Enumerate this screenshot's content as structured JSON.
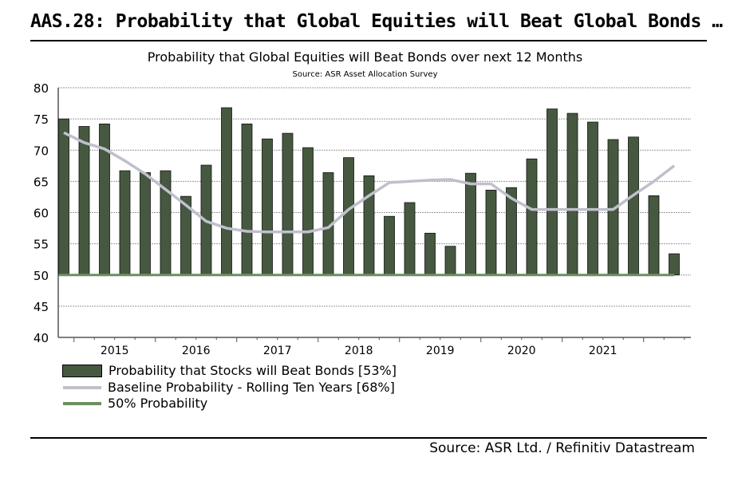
{
  "header": {
    "title": "AAS.28: Probability that Global Equities will Beat Global Bonds …"
  },
  "footer": {
    "source": "Source: ASR Ltd. / Refinitiv Datastream"
  },
  "chart_data": {
    "type": "bar",
    "title": "Probability that Global Equities will Beat Bonds over next 12 Months",
    "subtitle": "Source: ASR Asset Allocation Survey",
    "ylim": [
      40,
      80
    ],
    "yticks": [
      40,
      45,
      50,
      55,
      60,
      65,
      70,
      75,
      80
    ],
    "xtick_labels": [
      "2015",
      "2016",
      "2017",
      "2018",
      "2019",
      "2020",
      "2021"
    ],
    "grid": true,
    "legend_position": "bottom",
    "colors": {
      "bars": "#465940",
      "baseline": "#c0c0cc",
      "fifty": "#6b8f5e"
    },
    "series": [
      {
        "name": "Probability that Stocks will Beat Bonds  [53%]",
        "type": "bar",
        "values": [
          75.0,
          73.8,
          74.2,
          66.7,
          66.4,
          66.7,
          62.6,
          67.6,
          76.8,
          74.2,
          71.8,
          72.7,
          70.4,
          66.4,
          68.8,
          65.9,
          59.4,
          61.6,
          56.7,
          54.6,
          66.3,
          63.6,
          64.0,
          68.6,
          76.6,
          75.9,
          74.5,
          71.7,
          72.1,
          62.7,
          53.4
        ]
      },
      {
        "name": "Baseline Probability - Rolling Ten Years [68%]",
        "type": "line",
        "values": [
          72.8,
          71.2,
          70.2,
          68.3,
          66.2,
          63.7,
          61.2,
          58.6,
          57.5,
          57.0,
          56.9,
          56.9,
          56.9,
          57.6,
          60.5,
          62.7,
          64.8,
          65.0,
          65.2,
          65.3,
          64.6,
          64.6,
          62.3,
          60.5,
          60.5,
          60.5,
          60.5,
          60.5,
          62.8,
          65.0,
          67.5
        ]
      },
      {
        "name": "50% Probability",
        "type": "line",
        "values": [
          50
        ]
      }
    ]
  }
}
